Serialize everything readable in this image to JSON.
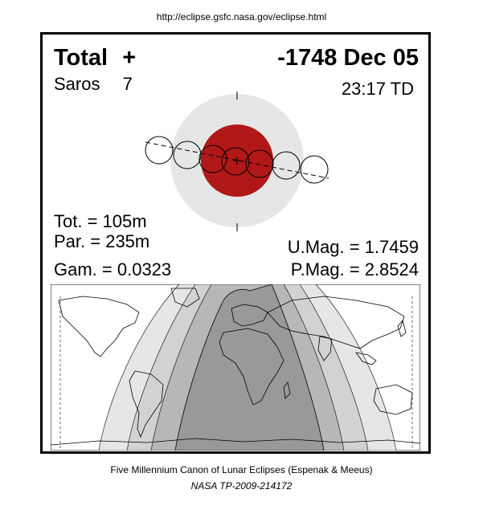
{
  "header_url": "http://eclipse.gsfc.nasa.gov/eclipse.html",
  "eclipse": {
    "type_label": "Total",
    "type_symbol": "+",
    "date": "-1748 Dec 05",
    "saros_label": "Saros",
    "saros_number": "7",
    "time": "23:17 TD",
    "tot": "Tot. = 105m",
    "par": "Par. = 235m",
    "gam": "Gam. = 0.0323",
    "umag": "U.Mag. = 1.7459",
    "pmag": "P.Mag. = 2.8524"
  },
  "colors": {
    "umbra": "#b01818",
    "penumbra": "#e6e6e6",
    "map_dark": "#999999",
    "map_mid": "#b7b7b7",
    "map_light": "#d2d2d2",
    "map_lighter": "#e6e6e6"
  },
  "footer": {
    "canon": "Five Millennium Canon of Lunar Eclipses (Espenak & Meeus)",
    "ref": "NASA TP-2009-214172"
  }
}
